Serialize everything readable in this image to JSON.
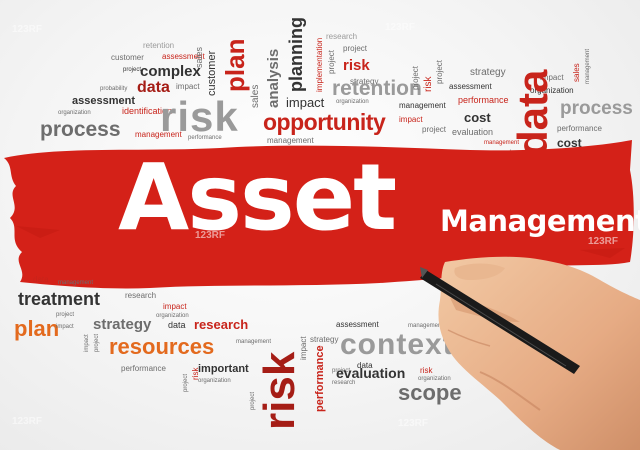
{
  "headline": {
    "title": "Asset",
    "subtitle": "Management"
  },
  "watermark": "123RF",
  "colors": {
    "brush_red": "#d42118",
    "title_text": "#ffffff",
    "word_red": "#c8241b",
    "word_grey": "#6d6d6d",
    "word_orange": "#e36a1e",
    "background": "#f1f1f1"
  },
  "words": {
    "risk_top": "risk",
    "process_left": "process",
    "opportunity": "opportunity",
    "retention": "retention",
    "data_right": "data",
    "process_right": "process",
    "plan_top": "plan",
    "analysis": "analysis",
    "planning": "planning",
    "customer": "customer",
    "complex": "complex",
    "data_top": "data",
    "assessment": "assessment",
    "identification": "identification",
    "probability": "probability",
    "risk_small": "risk",
    "project": "project",
    "strategy": "strategy",
    "impact": "impact",
    "sales": "sales",
    "management": "management",
    "performance": "performance",
    "cost": "cost",
    "evaluation": "evaluation",
    "research": "research",
    "implementation": "implementation",
    "organization": "organization",
    "treatment": "treatment",
    "plan_bottom": "plan",
    "resources": "resources",
    "strategy_bottom": "strategy",
    "risk_bottom": "risk",
    "context": "context",
    "scope": "scope",
    "important": "important",
    "data_bottom": "data"
  }
}
